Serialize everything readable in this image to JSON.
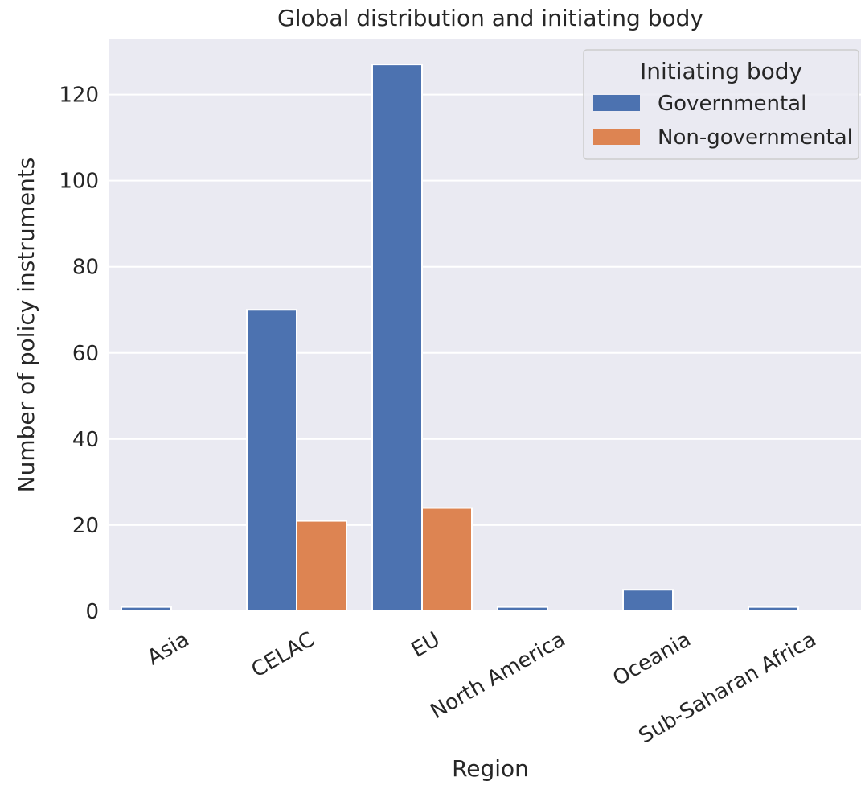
{
  "chart_data": {
    "type": "bar",
    "title": "Global distribution and initiating body",
    "xlabel": "Region",
    "ylabel": "Number of policy instruments",
    "categories": [
      "Asia",
      "CELAC",
      "EU",
      "North America",
      "Oceania",
      "Sub-Saharan Africa"
    ],
    "series": [
      {
        "name": "Governmental",
        "values": [
          1,
          70,
          127,
          1,
          5,
          1
        ]
      },
      {
        "name": "Non-governmental",
        "values": [
          0,
          21,
          24,
          0,
          0,
          0
        ]
      }
    ],
    "ylim": [
      0,
      133
    ],
    "yticks": [
      0,
      20,
      40,
      60,
      80,
      100,
      120
    ],
    "grid": true,
    "legend": {
      "title": "Initiating body",
      "position": "top-right"
    },
    "colors": {
      "plot_bg": "#EAEAF2",
      "grid": "#FFFFFF",
      "series": [
        "#4C72B0",
        "#DD8452"
      ]
    }
  }
}
